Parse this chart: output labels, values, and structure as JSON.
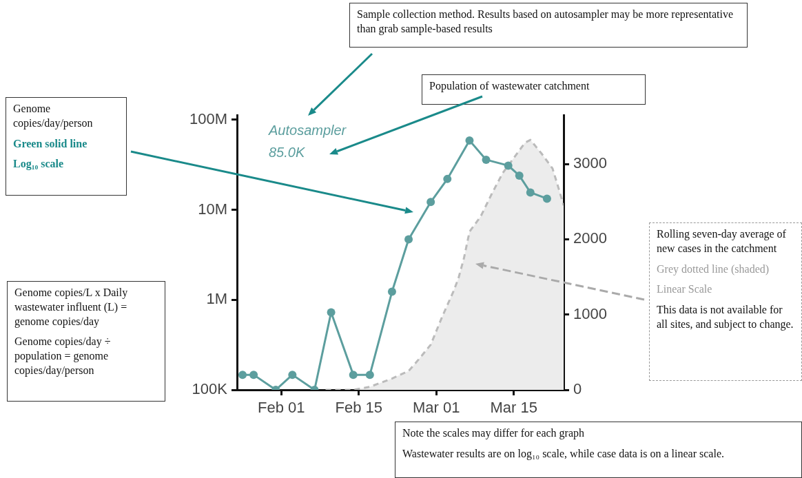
{
  "chart_data": {
    "type": "line",
    "log": "y",
    "xlim": [
      "--01-24",
      "--03-24"
    ],
    "xticks": [
      {
        "value": "--02-01",
        "label": "Feb 01"
      },
      {
        "value": "--02-15",
        "label": "Feb 15"
      },
      {
        "value": "--03-01",
        "label": "Mar 01"
      },
      {
        "value": "--03-15",
        "label": "Mar 15"
      }
    ],
    "ylim": [
      100000,
      113000000
    ],
    "yticks": [
      {
        "value": 100000,
        "label": "100K"
      },
      {
        "value": 1000000,
        "label": "1M"
      },
      {
        "value": 10000000,
        "label": "10M"
      },
      {
        "value": 100000000,
        "label": "100M"
      }
    ],
    "y2lim": [
      0,
      3650
    ],
    "y2ticks": [
      0,
      1000,
      2000,
      3000
    ],
    "legend": false,
    "series": [
      {
        "type": "area",
        "axis": "y2",
        "marker": "none",
        "color": "#bbbbbb",
        "line_style": "dashed",
        "x": [
          "--02-09",
          "--02-14",
          "--02-17",
          "--02-21",
          "--02-24",
          "--02-26",
          "--02-28",
          "--03-02",
          "--03-04",
          "--03-05",
          "--03-06",
          "--03-07",
          "--03-09",
          "--03-11",
          "--03-13",
          "--03-15",
          "--03-17",
          "--03-18",
          "--03-19",
          "--03-20",
          "--03-22",
          "--03-23",
          "--03-24"
        ],
        "values": [
          0,
          0,
          40,
          150,
          250,
          420,
          600,
          960,
          1290,
          1480,
          1750,
          2100,
          2300,
          2600,
          2880,
          3080,
          3280,
          3320,
          3230,
          3140,
          2940,
          2700,
          2450
        ]
      },
      {
        "type": "line",
        "marker": "circle",
        "color": "#5c9e9e",
        "line_style": "solid",
        "x": [
          "--01-25",
          "--01-27",
          "--01-31",
          "--02-03",
          "--02-07",
          "--02-10",
          "--02-14",
          "--02-17",
          "--02-21",
          "--02-24",
          "--02-28",
          "--03-03",
          "--03-07",
          "--03-10",
          "--03-14",
          "--03-16",
          "--03-18",
          "--03-21"
        ],
        "values": [
          147000,
          147000,
          100000,
          147000,
          100000,
          726000,
          147000,
          147000,
          1230000,
          4700000,
          12200000,
          22000000,
          59000000,
          36000000,
          31000000,
          24000000,
          15600000,
          13300000
        ]
      }
    ],
    "annotations": [
      "Sample collection method. Results based on autosampler may be more representative than grab sample-based results",
      "Population of wastewater catchment",
      "Genome copies/day/person",
      "Green solid line",
      "Log₁₀ scale",
      "Genome copies/L x Daily wastewater influent (L) = genome copies/day",
      "Genome copies/day ÷ population = genome copies/day/person",
      "Rolling seven-day average of new cases in the catchment",
      "Grey dotted line (shaded)",
      "Linear Scale",
      "This data is not available for all sites, and subject to change.",
      "Note the scales may differ for each graph",
      "Wastewater results are on log₁₀ scale, while case data is on a linear scale.",
      "Autosampler",
      "85.0K"
    ]
  }
}
